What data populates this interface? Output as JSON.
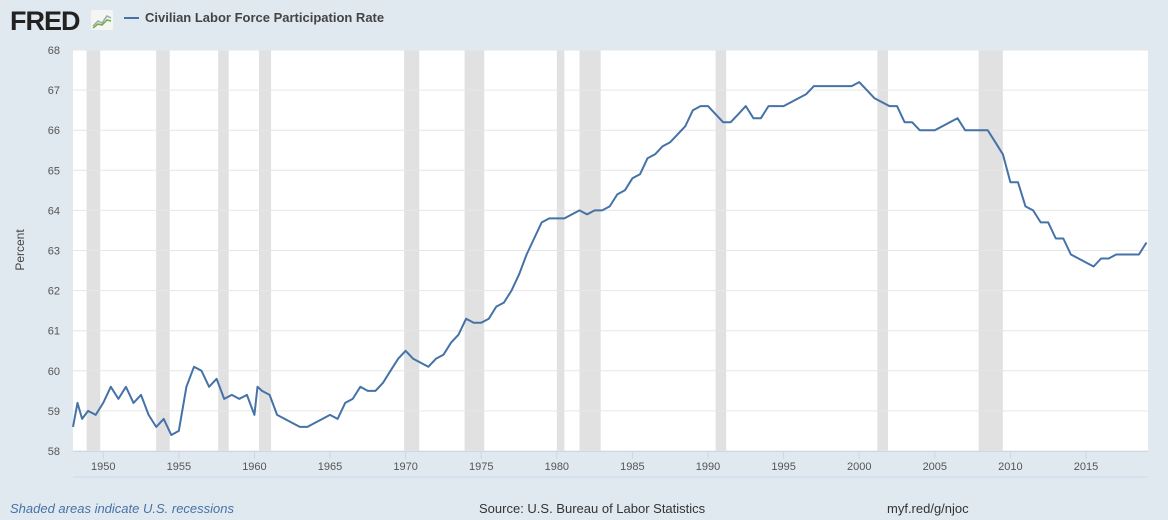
{
  "header": {
    "logo": "FRED",
    "series_label": "Civilian Labor Force Participation Rate"
  },
  "footer": {
    "recession_note": "Shaded areas indicate U.S. recessions",
    "source": "Source: U.S. Bureau of Labor Statistics",
    "short_url": "myf.red/g/njoc"
  },
  "colors": {
    "line": "#4572a7",
    "recession": "#e1e1e1",
    "background": "#e1e9f0"
  },
  "chart_data": {
    "type": "line",
    "title": "Civilian Labor Force Participation Rate",
    "xlabel": "",
    "ylabel": "Percent",
    "xlim": [
      1948,
      2019.1
    ],
    "ylim": [
      58,
      68
    ],
    "yticks": [
      58,
      59,
      60,
      61,
      62,
      63,
      64,
      65,
      66,
      67,
      68
    ],
    "xticks": [
      1950,
      1955,
      1960,
      1965,
      1970,
      1975,
      1980,
      1985,
      1990,
      1995,
      2000,
      2005,
      2010,
      2015
    ],
    "recessions": [
      [
        1948.9,
        1949.8
      ],
      [
        1953.5,
        1954.4
      ],
      [
        1957.6,
        1958.3
      ],
      [
        1960.3,
        1961.1
      ],
      [
        1969.9,
        1970.9
      ],
      [
        1973.9,
        1975.2
      ],
      [
        1980.0,
        1980.5
      ],
      [
        1981.5,
        1982.9
      ],
      [
        1990.5,
        1991.2
      ],
      [
        2001.2,
        2001.9
      ],
      [
        2007.9,
        2009.5
      ]
    ],
    "series": [
      {
        "name": "Civilian Labor Force Participation Rate",
        "x": [
          1948,
          1948.3,
          1948.6,
          1949,
          1949.5,
          1950,
          1950.5,
          1951,
          1951.5,
          1952,
          1952.5,
          1953,
          1953.5,
          1954,
          1954.5,
          1955,
          1955.5,
          1956,
          1956.5,
          1957,
          1957.5,
          1958,
          1958.5,
          1959,
          1959.5,
          1960,
          1960.2,
          1960.5,
          1961,
          1961.5,
          1962,
          1962.5,
          1963,
          1963.5,
          1964,
          1964.5,
          1965,
          1965.5,
          1966,
          1966.5,
          1967,
          1967.5,
          1968,
          1968.5,
          1969,
          1969.5,
          1970,
          1970.5,
          1971,
          1971.5,
          1972,
          1972.5,
          1973,
          1973.5,
          1974,
          1974.5,
          1975,
          1975.5,
          1976,
          1976.5,
          1977,
          1977.5,
          1978,
          1978.5,
          1979,
          1979.5,
          1980,
          1980.5,
          1981,
          1981.5,
          1982,
          1982.5,
          1983,
          1983.5,
          1984,
          1984.5,
          1985,
          1985.5,
          1986,
          1986.5,
          1987,
          1987.5,
          1988,
          1988.5,
          1989,
          1989.5,
          1990,
          1990.5,
          1991,
          1991.5,
          1992,
          1992.5,
          1993,
          1993.5,
          1994,
          1994.5,
          1995,
          1995.5,
          1996,
          1996.5,
          1997,
          1997.5,
          1998,
          1998.5,
          1999,
          1999.5,
          2000,
          2000.5,
          2001,
          2001.5,
          2002,
          2002.5,
          2003,
          2003.5,
          2004,
          2004.5,
          2005,
          2005.5,
          2006,
          2006.5,
          2007,
          2007.5,
          2008,
          2008.5,
          2009,
          2009.5,
          2010,
          2010.5,
          2011,
          2011.5,
          2012,
          2012.5,
          2013,
          2013.5,
          2014,
          2014.5,
          2015,
          2015.5,
          2016,
          2016.5,
          2017,
          2017.5,
          2018,
          2018.5,
          2019
        ],
        "values": [
          58.6,
          59.2,
          58.8,
          59.0,
          58.9,
          59.2,
          59.6,
          59.3,
          59.6,
          59.2,
          59.4,
          58.9,
          58.6,
          58.8,
          58.4,
          58.5,
          59.6,
          60.1,
          60.0,
          59.6,
          59.8,
          59.3,
          59.4,
          59.3,
          59.4,
          58.9,
          59.6,
          59.5,
          59.4,
          58.9,
          58.8,
          58.7,
          58.6,
          58.6,
          58.7,
          58.8,
          58.9,
          58.8,
          59.2,
          59.3,
          59.6,
          59.5,
          59.5,
          59.7,
          60.0,
          60.3,
          60.5,
          60.3,
          60.2,
          60.1,
          60.3,
          60.4,
          60.7,
          60.9,
          61.3,
          61.2,
          61.2,
          61.3,
          61.6,
          61.7,
          62.0,
          62.4,
          62.9,
          63.3,
          63.7,
          63.8,
          63.8,
          63.8,
          63.9,
          64.0,
          63.9,
          64.0,
          64.0,
          64.1,
          64.4,
          64.5,
          64.8,
          64.9,
          65.3,
          65.4,
          65.6,
          65.7,
          65.9,
          66.1,
          66.5,
          66.6,
          66.6,
          66.4,
          66.2,
          66.2,
          66.4,
          66.6,
          66.3,
          66.3,
          66.6,
          66.6,
          66.6,
          66.7,
          66.8,
          66.9,
          67.1,
          67.1,
          67.1,
          67.1,
          67.1,
          67.1,
          67.2,
          67.0,
          66.8,
          66.7,
          66.6,
          66.6,
          66.2,
          66.2,
          66.0,
          66.0,
          66.0,
          66.1,
          66.2,
          66.3,
          66.0,
          66.0,
          66.0,
          66.0,
          65.7,
          65.4,
          64.7,
          64.7,
          64.1,
          64.0,
          63.7,
          63.7,
          63.3,
          63.3,
          62.9,
          62.8,
          62.7,
          62.6,
          62.8,
          62.8,
          62.9,
          62.9,
          62.9,
          62.9,
          63.2
        ]
      }
    ]
  }
}
